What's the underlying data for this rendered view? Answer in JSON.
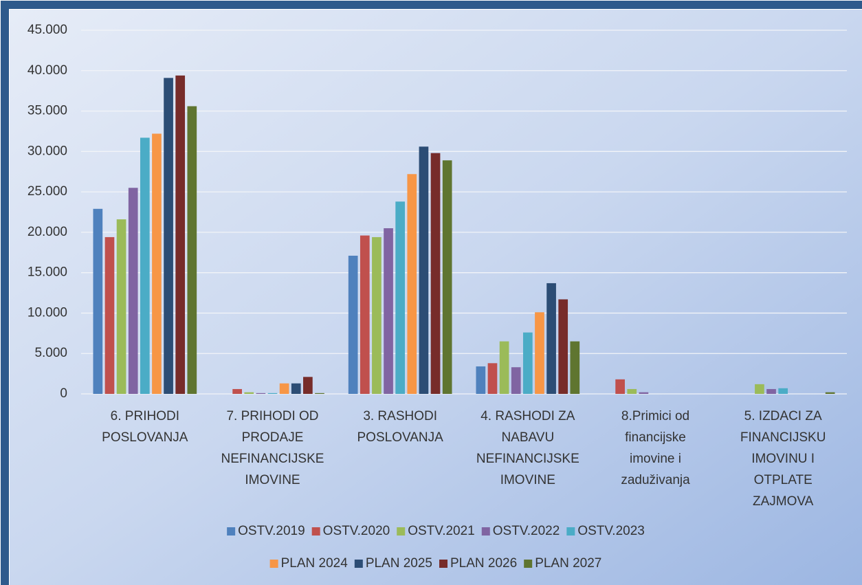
{
  "chart_data": {
    "type": "bar",
    "categories": [
      "6. PRIHODI POSLOVANJA",
      "7. PRIHODI OD PRODAJE NEFINANCIJSKE IMOVINE",
      "3. RASHODI POSLOVANJA",
      "4. RASHODI ZA NABAVU NEFINANCIJSKE IMOVINE",
      "8.Primici od financijske imovine i zaduživanja",
      "5. IZDACI ZA FINANCIJSKU IMOVINU I OTPLATE ZAJMOVA"
    ],
    "series": [
      {
        "name": "OSTV.2019",
        "color": "#4f81bd",
        "values": [
          22900,
          0,
          17100,
          3400,
          0,
          0
        ]
      },
      {
        "name": "OSTV.2020",
        "color": "#c0504d",
        "values": [
          19400,
          600,
          19600,
          3800,
          1800,
          0
        ]
      },
      {
        "name": "OSTV.2021",
        "color": "#9bbb59",
        "values": [
          21600,
          200,
          19400,
          6500,
          600,
          1200
        ]
      },
      {
        "name": "OSTV.2022",
        "color": "#8064a2",
        "values": [
          25500,
          100,
          20500,
          3300,
          200,
          600
        ]
      },
      {
        "name": "OSTV.2023",
        "color": "#4bacc6",
        "values": [
          31700,
          100,
          23800,
          7600,
          0,
          700
        ]
      },
      {
        "name": "PLAN 2024",
        "color": "#f79646",
        "values": [
          32200,
          1300,
          27200,
          10100,
          0,
          0
        ]
      },
      {
        "name": "PLAN 2025",
        "color": "#2c4d75",
        "values": [
          39100,
          1300,
          30600,
          13700,
          0,
          0
        ]
      },
      {
        "name": "PLAN 2026",
        "color": "#772c2a",
        "values": [
          39400,
          2100,
          29800,
          11700,
          0,
          0
        ]
      },
      {
        "name": "PLAN 2027",
        "color": "#5f7530",
        "values": [
          35600,
          100,
          28900,
          6500,
          0,
          200
        ]
      }
    ],
    "ylim": [
      0,
      45000
    ],
    "yticks": [
      0,
      {
        "value": 5000,
        "label": "5.000"
      },
      {
        "value": 10000,
        "label": "10.000"
      },
      {
        "value": 15000,
        "label": "15.000"
      },
      {
        "value": 20000,
        "label": "20.000"
      },
      {
        "value": 25000,
        "label": "25.000"
      },
      {
        "value": 30000,
        "label": "30.000"
      },
      {
        "value": 35000,
        "label": "35.000"
      },
      {
        "value": 40000,
        "label": "40.000"
      },
      {
        "value": 45000,
        "label": "45.000"
      }
    ],
    "grid": true
  }
}
